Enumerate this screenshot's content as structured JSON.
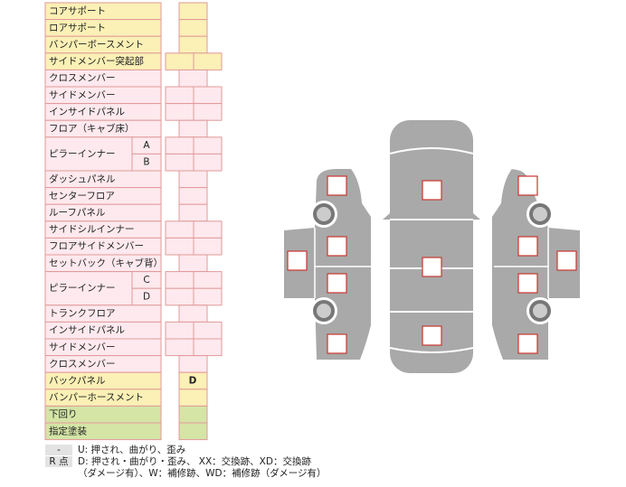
{
  "items": [
    {
      "label": "コアサポート"
    },
    {
      "label": "ロアサポート"
    },
    {
      "label": "バンパーボースメント"
    },
    {
      "label": "サイドメンバー突起部"
    },
    {
      "label": "クロスメンバー"
    },
    {
      "label": "サイドメンバー"
    },
    {
      "label": "インサイドパネル"
    },
    {
      "label": "フロア（キャブ床）"
    },
    {
      "label": "ピラーインナー",
      "subs": [
        "A",
        "B"
      ]
    },
    {
      "label": "ダッシュパネル"
    },
    {
      "label": "センターフロア"
    },
    {
      "label": "ルーフパネル"
    },
    {
      "label": "サイドシルインナー"
    },
    {
      "label": "フロアサイドメンバー"
    },
    {
      "label": "セットバック（キャブ背）"
    },
    {
      "label": "ピラーインナー",
      "subs": [
        "C",
        "D"
      ]
    },
    {
      "label": "トランクフロア"
    },
    {
      "label": "インサイドパネル"
    },
    {
      "label": "サイドメンバー"
    },
    {
      "label": "クロスメンバー"
    },
    {
      "label": "バックパネル",
      "mark": "D"
    },
    {
      "label": "バンパーホースメント"
    },
    {
      "label": "下回り"
    },
    {
      "label": "指定塗装"
    }
  ],
  "legend": [
    {
      "key": "-",
      "lines": [
        "U: 押され、曲がり、歪み"
      ]
    },
    {
      "key": "R 点",
      "lines": [
        "D: 押され・曲がり・歪み、 XX：交換跡、XD：交換跡",
        "（ダメージ有）、W：補修跡、WD：補修跡（ダメージ有）"
      ]
    }
  ]
}
